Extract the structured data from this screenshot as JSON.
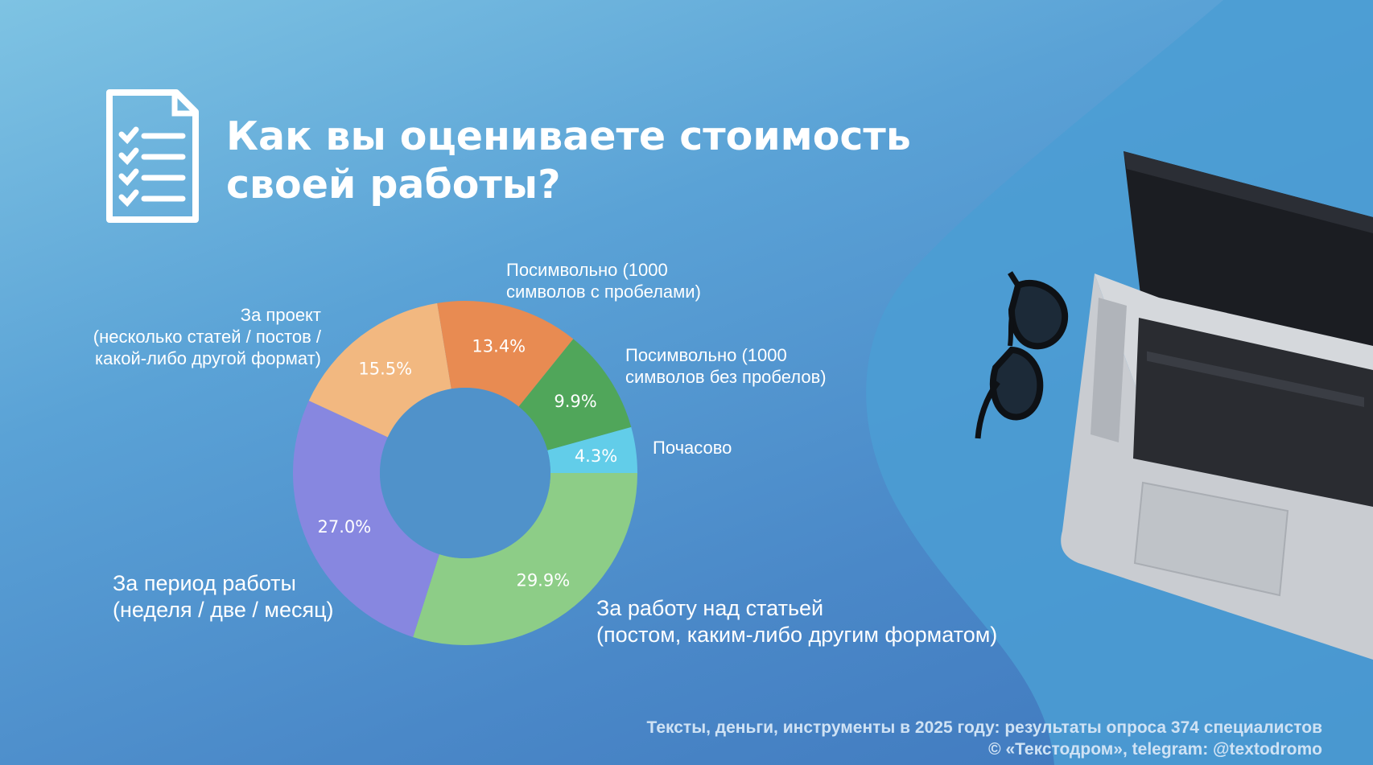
{
  "title": "Как вы оцениваете стоимость своей работы?",
  "icons": {
    "document": "checklist-document-icon",
    "laptop": "laptop-photo",
    "glasses": "glasses-photo"
  },
  "chart_data": {
    "type": "pie",
    "donut": true,
    "segments": [
      {
        "label_lines": [
          "Почасово"
        ],
        "value": 4.3,
        "value_label": "4.3%",
        "color": "#62cde9"
      },
      {
        "label_lines": [
          "За работу над статьей",
          "(постом, каким-либо другим форматом)"
        ],
        "value": 29.9,
        "value_label": "29.9%",
        "color": "#8dcd87"
      },
      {
        "label_lines": [
          "За период работы",
          "(неделя / две / месяц)"
        ],
        "value": 27.0,
        "value_label": "27.0%",
        "color": "#8787e0"
      },
      {
        "label_lines": [
          "За проект",
          "(несколько статей / постов /",
          "какой-либо другой формат)"
        ],
        "value": 15.5,
        "value_label": "15.5%",
        "color": "#f2b880"
      },
      {
        "label_lines": [
          "Посимвольно (1000",
          "символов с пробелами)"
        ],
        "value": 13.4,
        "value_label": "13.4%",
        "color": "#e88b52"
      },
      {
        "label_lines": [
          "Посимвольно (1000",
          "символов без пробелов)"
        ],
        "value": 9.9,
        "value_label": "9.9%",
        "color": "#50a65a"
      }
    ]
  },
  "footer": {
    "line1": "Тексты, деньги, инструменты в 2025 году: результаты опроса 374 специалистов",
    "line2": "© «Текстодром», telegram: @textodromo"
  }
}
